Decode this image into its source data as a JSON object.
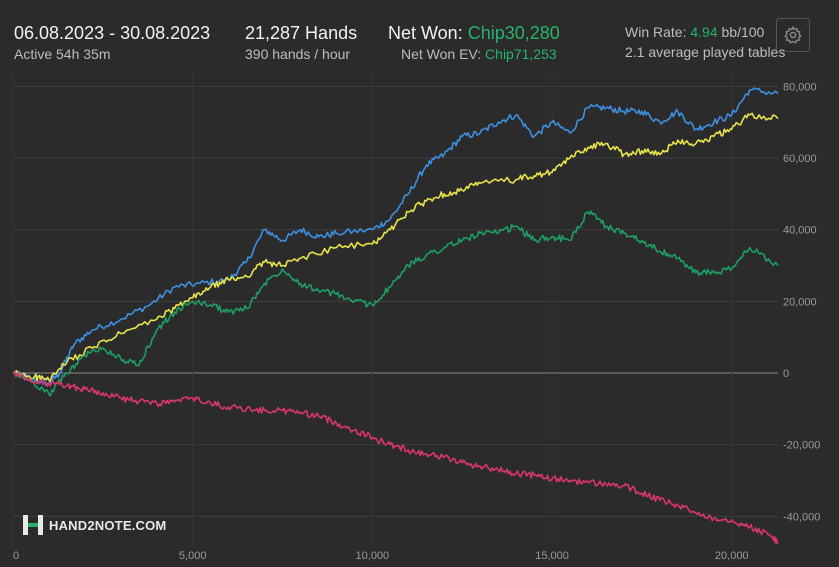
{
  "header": {
    "date_range": "06.08.2023 - 30.08.2023",
    "active_time": "Active 54h 35m",
    "hands": "21,287 Hands",
    "hands_per_hour": "390 hands / hour",
    "net_won_label": "Net Won: ",
    "net_won_value": "Chip30,280",
    "net_won_ev_label": "Net Won  EV: ",
    "net_won_ev_value": "Chip71,253",
    "win_rate_label": "Win Rate: ",
    "win_rate_value": "4.94",
    "win_rate_unit": " bb/100",
    "tables": "2.1 average played tables"
  },
  "logo": {
    "text": "HAND2NOTE.COM"
  },
  "settings_icon": "gear-icon",
  "chart_data": {
    "type": "line",
    "xlim": [
      0,
      21287
    ],
    "ylim": [
      -48000,
      84000
    ],
    "x_ticks": [
      0,
      5000,
      10000,
      15000,
      20000
    ],
    "x_tick_labels": [
      "0",
      "5,000",
      "10,000",
      "15,000",
      "20,000"
    ],
    "y_ticks": [
      80000,
      60000,
      40000,
      20000,
      0,
      -20000,
      -40000
    ],
    "y_tick_labels": [
      "80,000",
      "60,000",
      "40,000",
      "20,000",
      "0",
      "-20,000",
      "-40,000"
    ],
    "grid": true,
    "series": [
      {
        "color": "#3d8fe0",
        "x": [
          0,
          500,
          1000,
          1300,
          1700,
          2200,
          3000,
          3800,
          4500,
          5200,
          6000,
          6500,
          7000,
          7500,
          8000,
          8500,
          9000,
          10000,
          10500,
          11000,
          11500,
          12000,
          12500,
          13000,
          13500,
          14000,
          14500,
          15000,
          15500,
          16000,
          16500,
          17000,
          17500,
          18000,
          18500,
          19000,
          19500,
          20000,
          20500,
          21287
        ],
        "y": [
          0,
          -1500,
          -3000,
          0,
          8000,
          12000,
          15000,
          19000,
          24000,
          25000,
          26000,
          31000,
          40000,
          37000,
          40000,
          38000,
          39000,
          40000,
          43000,
          50000,
          58000,
          61000,
          66000,
          67000,
          70000,
          72000,
          66000,
          70000,
          67000,
          74000,
          74000,
          73000,
          73000,
          70000,
          73000,
          68000,
          70000,
          72000,
          79000,
          78000
        ]
      },
      {
        "color": "#e9e34b",
        "x": [
          0,
          600,
          1000,
          1500,
          2200,
          3000,
          4000,
          4500,
          5000,
          5500,
          6000,
          6500,
          7000,
          7500,
          8000,
          9000,
          10000,
          10500,
          11000,
          11500,
          12000,
          12500,
          13000,
          14000,
          14500,
          15000,
          15500,
          16000,
          16500,
          17000,
          17500,
          18000,
          18500,
          19000,
          19500,
          20000,
          20500,
          21287
        ],
        "y": [
          0,
          -1000,
          -2000,
          3000,
          7000,
          11000,
          15000,
          18000,
          21000,
          24000,
          26000,
          27000,
          31000,
          30000,
          32000,
          35000,
          36000,
          40000,
          45000,
          48000,
          50000,
          51000,
          53000,
          54000,
          55000,
          56000,
          60000,
          63000,
          64000,
          61000,
          62000,
          61000,
          65000,
          64000,
          66000,
          68000,
          72000,
          71000
        ]
      },
      {
        "color": "#1f9e62",
        "x": [
          0,
          500,
          1000,
          1500,
          2000,
          2500,
          3000,
          3500,
          4000,
          4500,
          5000,
          5500,
          6000,
          6500,
          7000,
          7500,
          8000,
          8500,
          9000,
          9500,
          10000,
          10500,
          11000,
          11500,
          12000,
          12500,
          13000,
          13500,
          14000,
          14500,
          15000,
          15500,
          16000,
          16500,
          17000,
          17500,
          18000,
          18500,
          19000,
          19500,
          20000,
          20500,
          21287
        ],
        "y": [
          0,
          -2000,
          -6000,
          0,
          5000,
          7000,
          4000,
          2000,
          12000,
          17000,
          20000,
          19000,
          17000,
          18000,
          25000,
          29000,
          25000,
          23000,
          22000,
          20000,
          19000,
          24000,
          30000,
          33000,
          35000,
          37000,
          39000,
          39000,
          41000,
          37000,
          38000,
          37000,
          45000,
          41000,
          39000,
          37000,
          34000,
          32000,
          28000,
          28000,
          29000,
          35000,
          30000
        ]
      },
      {
        "color": "#d9376a",
        "x": [
          0,
          500,
          1000,
          1500,
          2000,
          2500,
          3000,
          3500,
          4000,
          4500,
          5000,
          5500,
          6000,
          6500,
          7000,
          7500,
          8000,
          8500,
          9000,
          9500,
          10000,
          10500,
          11000,
          11500,
          12000,
          12500,
          13000,
          13500,
          14000,
          14500,
          15000,
          15500,
          16000,
          16500,
          17000,
          17500,
          18000,
          18500,
          19000,
          19500,
          20000,
          20500,
          21000,
          21287
        ],
        "y": [
          0,
          -2500,
          -3000,
          -3500,
          -4500,
          -5500,
          -7000,
          -8000,
          -8500,
          -8000,
          -7000,
          -8500,
          -9500,
          -10000,
          -10500,
          -10500,
          -11000,
          -12000,
          -14000,
          -16000,
          -18000,
          -20000,
          -21500,
          -22500,
          -23500,
          -25000,
          -26000,
          -27000,
          -28000,
          -28500,
          -29500,
          -30000,
          -30500,
          -31000,
          -31500,
          -33500,
          -35500,
          -37000,
          -39000,
          -40500,
          -41000,
          -43000,
          -45000,
          -47000
        ]
      }
    ]
  }
}
